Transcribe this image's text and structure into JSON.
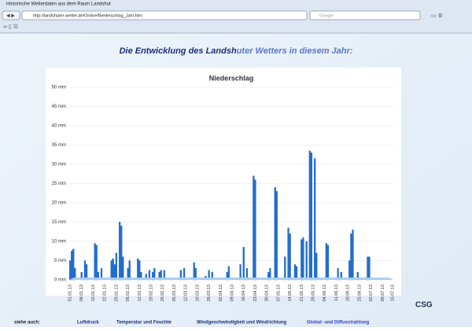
{
  "browser": {
    "title": "Historische Wetterdaten aus dem Raum Landshut",
    "url": "http://landshuter-wetter.de/Online/Niederschlag_Jahr.htm",
    "search": "Google"
  },
  "page": {
    "heading": [
      "Die Entwicklung des Landsh",
      "uter Wetters in diesem Jahr:"
    ],
    "footer": {
      "label": "siehe auch:",
      "links": [
        "Luftdruck",
        "Temperatur und Feuchte",
        "Windgeschwindigkeit und Windrichtung",
        "Global- und Diffusstrahlung"
      ]
    },
    "logo": "CSG"
  },
  "chart_data": {
    "type": "bar",
    "title": "Niederschlag",
    "color": "#1f6fd6",
    "ylim": [
      0,
      50
    ],
    "yticks": [
      {
        "value": 0,
        "label": "0 mm"
      },
      {
        "value": 5,
        "label": "5 mm"
      },
      {
        "value": 10,
        "label": "10 mm"
      },
      {
        "value": 15,
        "label": "15 mm"
      },
      {
        "value": 20,
        "label": "20 mm"
      },
      {
        "value": 25,
        "label": "25 mm"
      },
      {
        "value": 30,
        "label": "30 mm"
      },
      {
        "value": 35,
        "label": "35 mm"
      },
      {
        "value": 40,
        "label": "40 mm"
      },
      {
        "value": 45,
        "label": "45 mm"
      },
      {
        "value": 50,
        "label": "50 mm"
      }
    ],
    "grid": true,
    "categories": [
      "01.01.13",
      null,
      null,
      null,
      null,
      null,
      null,
      "08.01.13",
      null,
      null,
      null,
      null,
      null,
      null,
      "15.01.13",
      null,
      null,
      null,
      null,
      null,
      null,
      "22.01.13",
      null,
      null,
      null,
      null,
      null,
      null,
      "29.01.13",
      null,
      null,
      null,
      null,
      null,
      null,
      "05.02.13",
      null,
      null,
      null,
      null,
      null,
      null,
      "12.02.13",
      null,
      null,
      null,
      null,
      null,
      null,
      "19.02.13",
      null,
      null,
      null,
      null,
      null,
      null,
      "26.02.13",
      null,
      null,
      null,
      null,
      null,
      null,
      "05.03.13",
      null,
      null,
      null,
      null,
      null,
      null,
      "12.03.13",
      null,
      null,
      null,
      null,
      null,
      null,
      "19.03.13",
      null,
      null,
      null,
      null,
      null,
      null,
      "26.03.13",
      null,
      null,
      null,
      null,
      null,
      null,
      "02.04.13",
      null,
      null,
      null,
      null,
      null,
      null,
      "09.04.13",
      null,
      null,
      null,
      null,
      null,
      null,
      "16.04.13",
      null,
      null,
      null,
      null,
      null,
      null,
      "23.04.13",
      null,
      null,
      null,
      null,
      null,
      null,
      "30.04.13",
      null,
      null,
      null,
      null,
      null,
      null,
      "07.05.13",
      null,
      null,
      null,
      null,
      null,
      null,
      "14.05.13",
      null,
      null,
      null,
      null,
      null,
      null,
      "21.05.13",
      null,
      null,
      null,
      null,
      null,
      null,
      "28.05.13",
      null,
      null,
      null,
      null,
      null,
      null,
      "04.06.13",
      null,
      null,
      null,
      null,
      null,
      null,
      "11.06.13",
      null,
      null,
      null,
      null,
      null,
      null,
      "18.06.13",
      null,
      null,
      null,
      null,
      null,
      null,
      "25.06.13",
      null,
      null,
      null,
      null,
      null,
      null,
      "02.07.13",
      null,
      null,
      null,
      null,
      null,
      null,
      "09.07.13",
      null,
      null,
      null,
      null,
      null,
      "15.07.13"
    ],
    "values": [
      5,
      7.5,
      8,
      3,
      0,
      0,
      0,
      2,
      0,
      5,
      4,
      0,
      0,
      0,
      0,
      9.5,
      9,
      2,
      0,
      3,
      0,
      0,
      0,
      0,
      0,
      5,
      5.5,
      4,
      7,
      0,
      15,
      14,
      6,
      0,
      0,
      3,
      5,
      0,
      0,
      0,
      0,
      5.5,
      5,
      2,
      0,
      0,
      1.5,
      0,
      2.5,
      0,
      2,
      3,
      0,
      0,
      2,
      2.5,
      0,
      2.5,
      0,
      0,
      0,
      0,
      0,
      0,
      0,
      0,
      0,
      2.5,
      0,
      3,
      0,
      0,
      0,
      0,
      0,
      4.5,
      3,
      0,
      0,
      0,
      0,
      0,
      1,
      0,
      2.5,
      0,
      2,
      0,
      0,
      0,
      0,
      0,
      0,
      0,
      0,
      2,
      3.5,
      0,
      0,
      0,
      0,
      0,
      0,
      4,
      0,
      8.5,
      0,
      3,
      0,
      0,
      0,
      27,
      26,
      0,
      0,
      0,
      0,
      0,
      0,
      0,
      2,
      3,
      0,
      0,
      24,
      23,
      0,
      0,
      0,
      0,
      6,
      0,
      13.5,
      12,
      0,
      0,
      4,
      3.5,
      0,
      0,
      10.5,
      11,
      0,
      10,
      0,
      33.5,
      33,
      0,
      31.5,
      7,
      0,
      0,
      0,
      0,
      0,
      9.5,
      9,
      0,
      0,
      0,
      0,
      0,
      3,
      0,
      2,
      0,
      0,
      0,
      0,
      5,
      12,
      13,
      0,
      0,
      2,
      0,
      0,
      0,
      0,
      0,
      6,
      6,
      0,
      0,
      0,
      0,
      0,
      0,
      0,
      0,
      0,
      0,
      0,
      0,
      0,
      0
    ]
  }
}
